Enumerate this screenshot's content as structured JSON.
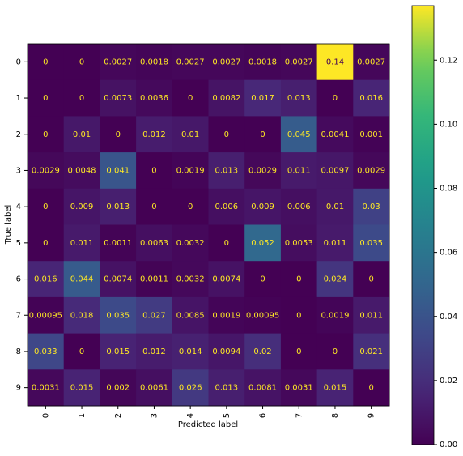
{
  "chart_data": {
    "type": "heatmap",
    "x_label": "Predicted label",
    "y_label": "True label",
    "x_categories": [
      "0",
      "1",
      "2",
      "3",
      "4",
      "5",
      "6",
      "7",
      "8",
      "9"
    ],
    "y_categories": [
      "0",
      "1",
      "2",
      "3",
      "4",
      "5",
      "6",
      "7",
      "8",
      "9"
    ],
    "values": [
      [
        0,
        0,
        0.0027,
        0.0018,
        0.0027,
        0.0027,
        0.0018,
        0.0027,
        0.14,
        0.0027
      ],
      [
        0,
        0,
        0.0073,
        0.0036,
        0,
        0.0082,
        0.017,
        0.013,
        0,
        0.016
      ],
      [
        0,
        0.01,
        0,
        0.012,
        0.01,
        0,
        0,
        0.045,
        0.0041,
        0.001
      ],
      [
        0.0029,
        0.0048,
        0.041,
        0,
        0.0019,
        0.013,
        0.0029,
        0.011,
        0.0097,
        0.0029
      ],
      [
        0,
        0.009,
        0.013,
        0,
        0,
        0.006,
        0.009,
        0.006,
        0.01,
        0.03
      ],
      [
        0,
        0.011,
        0.0011,
        0.0063,
        0.0032,
        0,
        0.052,
        0.0053,
        0.011,
        0.035
      ],
      [
        0.016,
        0.044,
        0.0074,
        0.0011,
        0.0032,
        0.0074,
        0,
        0,
        0.024,
        0
      ],
      [
        0.00095,
        0.018,
        0.035,
        0.027,
        0.0085,
        0.0019,
        0.00095,
        0,
        0.0019,
        0.011
      ],
      [
        0.033,
        0,
        0.015,
        0.012,
        0.014,
        0.0094,
        0.02,
        0,
        0,
        0.021
      ],
      [
        0.0031,
        0.015,
        0.002,
        0.0061,
        0.026,
        0.013,
        0.0081,
        0.0031,
        0.015,
        0
      ]
    ],
    "colormap": "viridis",
    "zlim": [
      0,
      0.137
    ],
    "zticks": [
      {
        "value": 0,
        "label": "0.00"
      },
      {
        "value": 0.02,
        "label": "0.02"
      },
      {
        "value": 0.04,
        "label": "0.04"
      },
      {
        "value": 0.06,
        "label": "0.06"
      },
      {
        "value": 0.08,
        "label": "0.08"
      },
      {
        "value": 0.1,
        "label": "0.10"
      },
      {
        "value": 0.12,
        "label": "0.12"
      }
    ]
  }
}
